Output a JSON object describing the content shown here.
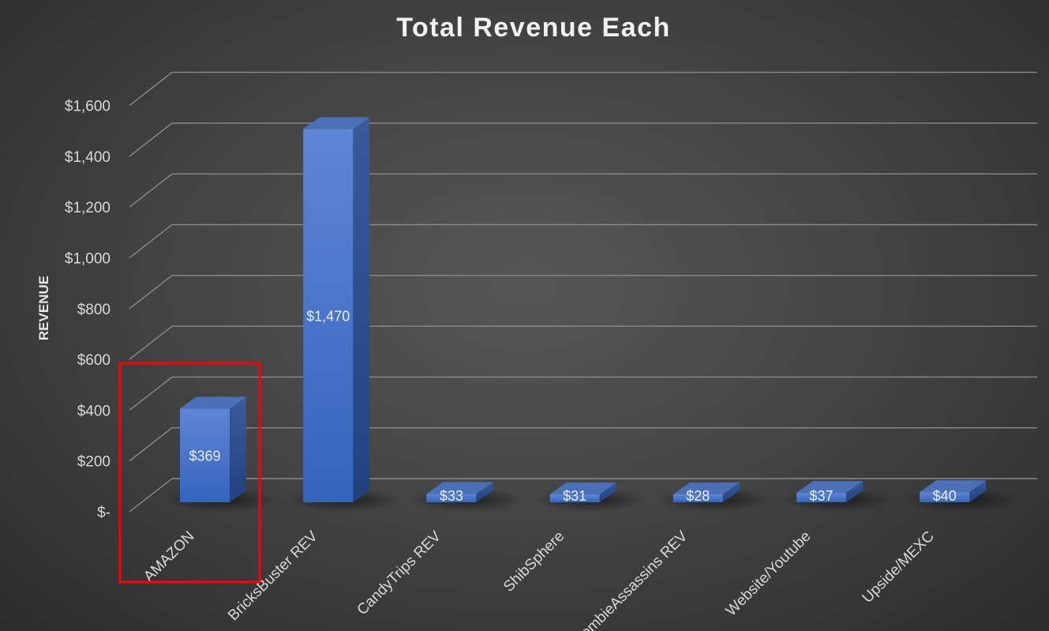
{
  "chart_data": {
    "type": "bar",
    "title": "Total Revenue Each",
    "xlabel": "",
    "ylabel": "REVENUE",
    "categories": [
      "AMAZON",
      "BricksBuster REV",
      "CandyTrips REV",
      "ShibSphere",
      "ZombieAssassins REV",
      "Website/Youtube",
      "Upside/MEXC"
    ],
    "values": [
      369,
      1470,
      33,
      31,
      28,
      37,
      40
    ],
    "data_labels": [
      "$369",
      "$1,470",
      "$33",
      "$31",
      "$28",
      "$37",
      "$40"
    ],
    "ylim": [
      0,
      1600
    ],
    "yticks": [
      0,
      200,
      400,
      600,
      800,
      1000,
      1200,
      1400,
      1600
    ],
    "ytick_labels": [
      "$-",
      "$200",
      "$400",
      "$600",
      "$800",
      "$1,000",
      "$1,200",
      "$1,400",
      "$1,600"
    ],
    "grid": true,
    "legend": "none",
    "style": "3d-column",
    "highlight": {
      "category": "AMAZON",
      "color": "#ff0000"
    },
    "colors": {
      "bar": "#4472c4",
      "grid": "#8a8a8a",
      "text": "#d9d9d9",
      "title": "#f2f2f2"
    }
  }
}
